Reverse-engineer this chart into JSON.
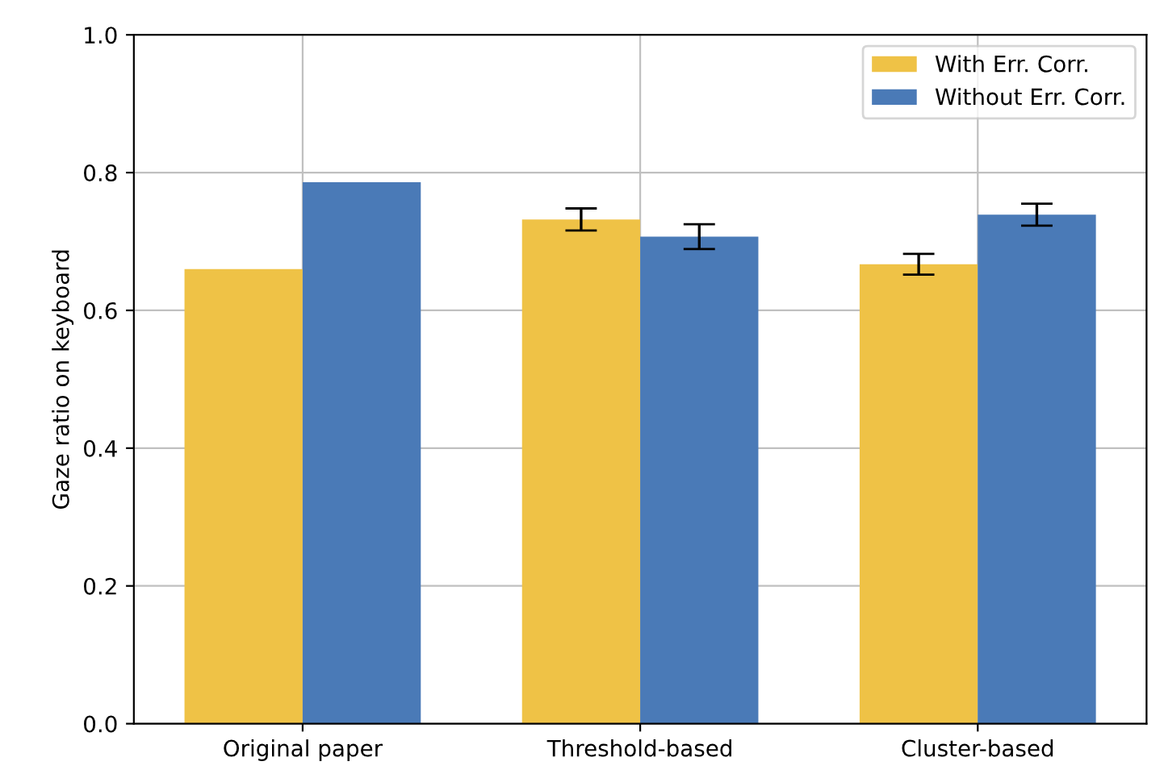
{
  "chart_data": {
    "type": "bar",
    "ylabel": "Gaze ratio on keyboard",
    "categories": [
      "Original paper",
      "Threshold-based",
      "Cluster-based"
    ],
    "series": [
      {
        "name": "With Err. Corr.",
        "color": "#efc246",
        "values": [
          0.66,
          0.732,
          0.667
        ],
        "errors": [
          null,
          0.016,
          0.015
        ]
      },
      {
        "name": "Without Err. Corr.",
        "color": "#4a7ab7",
        "values": [
          0.786,
          0.707,
          0.739
        ],
        "errors": [
          null,
          0.018,
          0.016
        ]
      }
    ],
    "ylim": [
      0.0,
      1.0
    ],
    "yticks": [
      {
        "value": 0,
        "label": "0.0"
      },
      0.2,
      0.4,
      0.6,
      0.8,
      {
        "value": 1,
        "label": "1.0"
      }
    ],
    "grid": true,
    "legend": "top right"
  }
}
